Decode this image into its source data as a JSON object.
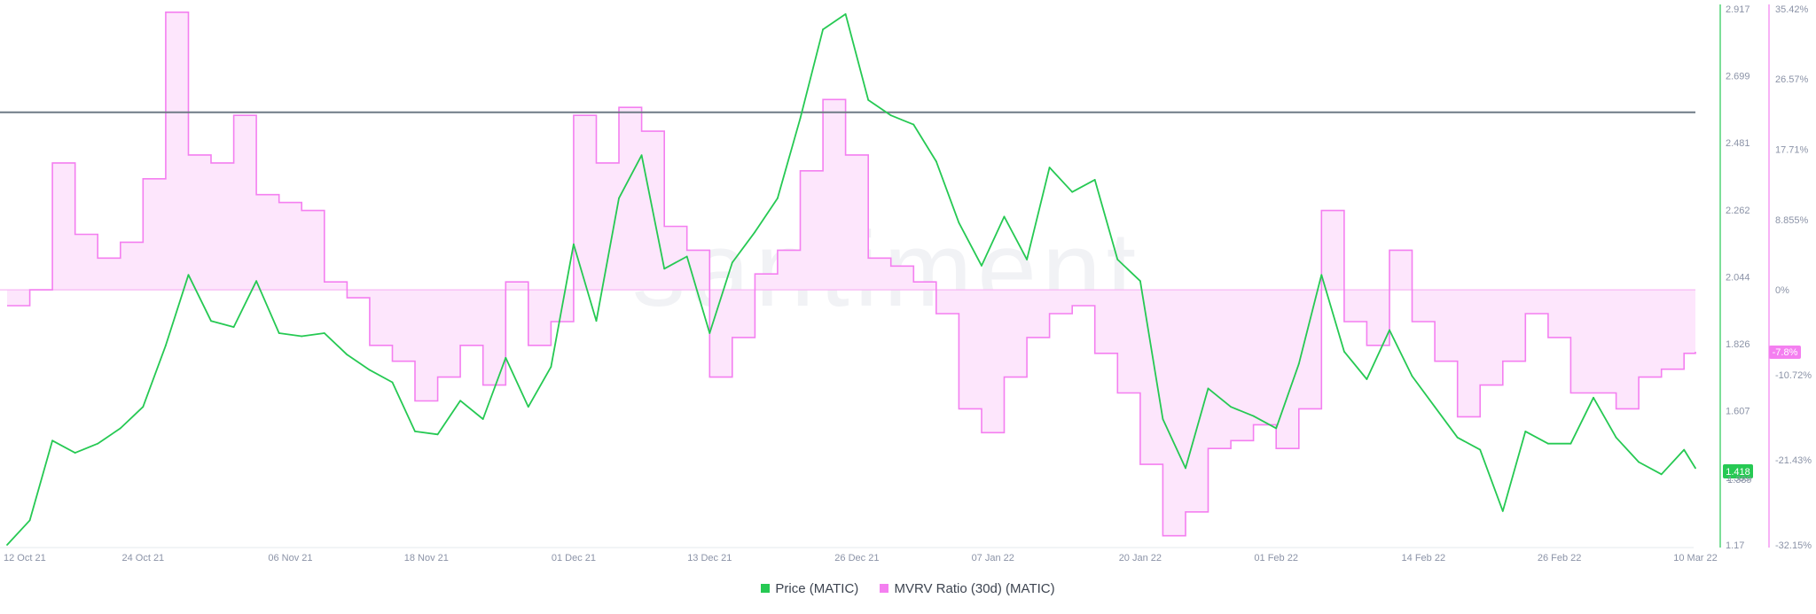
{
  "watermark": "santiment",
  "legend": {
    "price_label": "Price (MATIC)",
    "mvrv_label": "MVRV Ratio (30d) (MATIC)"
  },
  "current": {
    "price": "1.418",
    "price_prev": "1.389",
    "mvrv": "-7.8%"
  },
  "colors": {
    "price": "#26c953",
    "mvrv": "#f47ff0",
    "mvrv_fill": "#fde6fc",
    "mvrv_zero": "#f7b7f4",
    "ref_line": "#6f7a86"
  },
  "chart_data": {
    "type": "line",
    "x_tick_labels": [
      "12 Oct 21",
      "24 Oct 21",
      "06 Nov 21",
      "18 Nov 21",
      "01 Dec 21",
      "13 Dec 21",
      "26 Dec 21",
      "07 Jan 22",
      "20 Jan 22",
      "01 Feb 22",
      "14 Feb 22",
      "26 Feb 22",
      "10 Mar 22"
    ],
    "price_axis": {
      "ticks": [
        "2.917",
        "2.699",
        "2.481",
        "2.262",
        "2.044",
        "1.826",
        "1.607",
        "1.389",
        "1.17"
      ],
      "min": 1.17,
      "max": 2.917
    },
    "mvrv_axis": {
      "ticks": [
        "35.42%",
        "26.57%",
        "17.71%",
        "8.855%",
        "0%",
        "-10.72%",
        "-21.43%",
        "-32.15%"
      ],
      "min": -32.15,
      "max": 35.42,
      "unit": "%"
    },
    "reference_line_price": 2.58,
    "series": [
      {
        "name": "Price (MATIC)",
        "axis": "price",
        "x": [
          "12 Oct 21",
          "14 Oct 21",
          "16 Oct 21",
          "18 Oct 21",
          "20 Oct 21",
          "22 Oct 21",
          "24 Oct 21",
          "26 Oct 21",
          "28 Oct 21",
          "30 Oct 21",
          "01 Nov 21",
          "03 Nov 21",
          "05 Nov 21",
          "07 Nov 21",
          "09 Nov 21",
          "11 Nov 21",
          "13 Nov 21",
          "15 Nov 21",
          "17 Nov 21",
          "19 Nov 21",
          "21 Nov 21",
          "23 Nov 21",
          "25 Nov 21",
          "27 Nov 21",
          "29 Nov 21",
          "01 Dec 21",
          "03 Dec 21",
          "05 Dec 21",
          "07 Dec 21",
          "09 Dec 21",
          "11 Dec 21",
          "13 Dec 21",
          "15 Dec 21",
          "17 Dec 21",
          "19 Dec 21",
          "21 Dec 21",
          "23 Dec 21",
          "25 Dec 21",
          "27 Dec 21",
          "29 Dec 21",
          "31 Dec 21",
          "02 Jan 22",
          "04 Jan 22",
          "06 Jan 22",
          "08 Jan 22",
          "10 Jan 22",
          "12 Jan 22",
          "14 Jan 22",
          "16 Jan 22",
          "18 Jan 22",
          "20 Jan 22",
          "22 Jan 22",
          "24 Jan 22",
          "26 Jan 22",
          "28 Jan 22",
          "30 Jan 22",
          "01 Feb 22",
          "03 Feb 22",
          "05 Feb 22",
          "07 Feb 22",
          "09 Feb 22",
          "11 Feb 22",
          "13 Feb 22",
          "15 Feb 22",
          "17 Feb 22",
          "19 Feb 22",
          "21 Feb 22",
          "23 Feb 22",
          "25 Feb 22",
          "27 Feb 22",
          "01 Mar 22",
          "03 Mar 22",
          "05 Mar 22",
          "07 Mar 22",
          "09 Mar 22",
          "10 Mar 22"
        ],
        "values": [
          1.17,
          1.25,
          1.51,
          1.47,
          1.5,
          1.55,
          1.62,
          1.82,
          2.05,
          1.9,
          1.88,
          2.03,
          1.86,
          1.85,
          1.86,
          1.79,
          1.74,
          1.7,
          1.54,
          1.53,
          1.64,
          1.58,
          1.78,
          1.62,
          1.75,
          2.15,
          1.9,
          2.3,
          2.44,
          2.07,
          2.11,
          1.86,
          2.09,
          2.19,
          2.3,
          2.56,
          2.85,
          2.9,
          2.62,
          2.57,
          2.54,
          2.42,
          2.22,
          2.08,
          2.24,
          2.1,
          2.4,
          2.32,
          2.36,
          2.1,
          2.03,
          1.58,
          1.42,
          1.68,
          1.62,
          1.59,
          1.55,
          1.76,
          2.05,
          1.8,
          1.71,
          1.87,
          1.72,
          1.62,
          1.52,
          1.48,
          1.28,
          1.54,
          1.5,
          1.5,
          1.65,
          1.52,
          1.44,
          1.4,
          1.48,
          1.42
        ]
      },
      {
        "name": "MVRV Ratio (30d) (MATIC)",
        "axis": "mvrv",
        "x": [
          "12 Oct 21",
          "14 Oct 21",
          "16 Oct 21",
          "18 Oct 21",
          "20 Oct 21",
          "22 Oct 21",
          "24 Oct 21",
          "26 Oct 21",
          "28 Oct 21",
          "30 Oct 21",
          "01 Nov 21",
          "03 Nov 21",
          "05 Nov 21",
          "07 Nov 21",
          "09 Nov 21",
          "11 Nov 21",
          "13 Nov 21",
          "15 Nov 21",
          "17 Nov 21",
          "19 Nov 21",
          "21 Nov 21",
          "23 Nov 21",
          "25 Nov 21",
          "27 Nov 21",
          "29 Nov 21",
          "01 Dec 21",
          "03 Dec 21",
          "05 Dec 21",
          "07 Dec 21",
          "09 Dec 21",
          "11 Dec 21",
          "13 Dec 21",
          "15 Dec 21",
          "17 Dec 21",
          "19 Dec 21",
          "21 Dec 21",
          "23 Dec 21",
          "25 Dec 21",
          "27 Dec 21",
          "29 Dec 21",
          "31 Dec 21",
          "02 Jan 22",
          "04 Jan 22",
          "06 Jan 22",
          "08 Jan 22",
          "10 Jan 22",
          "12 Jan 22",
          "14 Jan 22",
          "16 Jan 22",
          "18 Jan 22",
          "20 Jan 22",
          "22 Jan 22",
          "24 Jan 22",
          "26 Jan 22",
          "28 Jan 22",
          "30 Jan 22",
          "01 Feb 22",
          "03 Feb 22",
          "05 Feb 22",
          "07 Feb 22",
          "09 Feb 22",
          "11 Feb 22",
          "13 Feb 22",
          "15 Feb 22",
          "17 Feb 22",
          "19 Feb 22",
          "21 Feb 22",
          "23 Feb 22",
          "25 Feb 22",
          "27 Feb 22",
          "01 Mar 22",
          "03 Mar 22",
          "05 Mar 22",
          "07 Mar 22",
          "09 Mar 22",
          "10 Mar 22"
        ],
        "values": [
          -2,
          0,
          16,
          7,
          4,
          6,
          14,
          35,
          17,
          16,
          22,
          12,
          11,
          10,
          1,
          -1,
          -7,
          -9,
          -14,
          -11,
          -7,
          -12,
          1,
          -7,
          -4,
          22,
          16,
          23,
          20,
          8,
          5,
          -11,
          -6,
          2,
          5,
          15,
          24,
          17,
          4,
          3,
          1,
          -3,
          -15,
          -18,
          -11,
          -6,
          -3,
          -2,
          -8,
          -13,
          -22,
          -31,
          -28,
          -20,
          -19,
          -17,
          -20,
          -15,
          10,
          -4,
          -7,
          5,
          -4,
          -9,
          -16,
          -12,
          -9,
          -3,
          -6,
          -13,
          -13,
          -15,
          -11,
          -10,
          -8,
          -7.8
        ]
      }
    ]
  }
}
